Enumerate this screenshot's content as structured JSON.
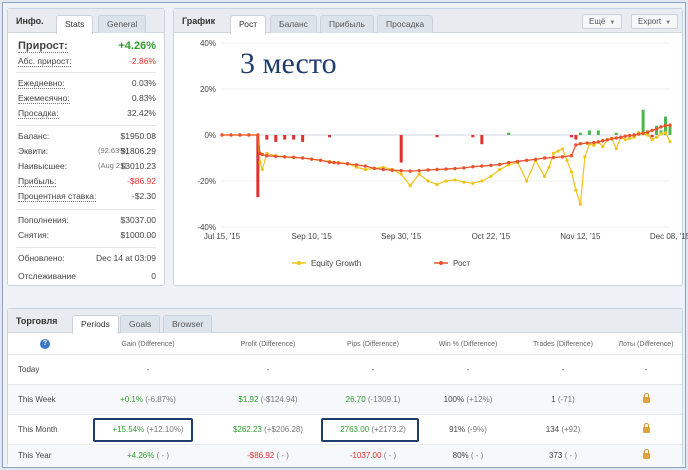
{
  "stats_panel": {
    "title": "Инфо.",
    "tabs": [
      "Stats",
      "General"
    ],
    "growth_label": "Прирост:",
    "growth_value": "+4.26%",
    "abs_growth_label": "Абс. прирост:",
    "abs_growth_value": "-2.86%",
    "daily_label": "Ежедневно:",
    "daily_value": "0.03%",
    "monthly_label": "Ежемесячно:",
    "monthly_value": "0.83%",
    "drawdown_label": "Просадка:",
    "drawdown_value": "32.42%",
    "balance_label": "Баланс:",
    "balance_value": "$1950.08",
    "equity_label": "Эквити:",
    "equity_pct": "(92.63%)",
    "equity_value": "$1806.29",
    "highest_label": "Наивысшее:",
    "highest_date": "(Aug 21)",
    "highest_value": "$3010.23",
    "profit_label": "Прибыль:",
    "profit_value": "-$86.92",
    "interest_label": "Процентная ставка:",
    "interest_value": "-$2.30",
    "deposits_label": "Пополнения:",
    "deposits_value": "$3037.00",
    "withdrawals_label": "Снятия:",
    "withdrawals_value": "$1000.00",
    "updated_label": "Обновлено:",
    "updated_value": "Dec 14 at 03:09",
    "tracking_label": "Отслеживание",
    "tracking_value": "0"
  },
  "chart_panel": {
    "title": "График",
    "tabs": [
      "Рост",
      "Баланс",
      "Прибыль",
      "Просадка"
    ],
    "more_label": "Ещё",
    "export_label": "Export",
    "overlay_text": "3 место",
    "legend": [
      "Equity Growth",
      "Рост"
    ]
  },
  "chart_data": {
    "type": "line",
    "x_ticks": [
      "Jul 15, '15",
      "Sep 10, '15",
      "Sep 30, '15",
      "Oct 22, '15",
      "Nov 12, '15",
      "Dec 08, '15"
    ],
    "y_ticks": [
      "40%",
      "20%",
      "0%",
      "-20%",
      "-40%"
    ],
    "ylim": [
      -40,
      40
    ],
    "growth_x": [
      0,
      4,
      8,
      12,
      16,
      17,
      18,
      20,
      24,
      28,
      32,
      36,
      40,
      44,
      48,
      50,
      52,
      56,
      60,
      64,
      68,
      72,
      76,
      80,
      84,
      88,
      92,
      96,
      100,
      104,
      108,
      112,
      116,
      120,
      124,
      128,
      132,
      136,
      140,
      144,
      148,
      152,
      156,
      158,
      160,
      163,
      166,
      168,
      170,
      172,
      174,
      176,
      178,
      180,
      182,
      184,
      186,
      188,
      190,
      192,
      194,
      196,
      198,
      200
    ],
    "growth_y": [
      0,
      0,
      0,
      0,
      0,
      -8,
      -8.5,
      -9,
      -9.3,
      -9.5,
      -9.7,
      -10,
      -10.5,
      -11,
      -11.8,
      -12,
      -12.2,
      -12.5,
      -13,
      -13.5,
      -14.5,
      -15,
      -15.3,
      -15.5,
      -15.7,
      -15.5,
      -15.2,
      -15,
      -14.8,
      -14.6,
      -14.3,
      -13.8,
      -13.5,
      -13.2,
      -12.8,
      -12,
      -11.5,
      -11,
      -10.6,
      -10,
      -9.8,
      -9.5,
      -9,
      -4.3,
      -3.8,
      -3.5,
      -3.3,
      -3,
      -2.5,
      -2.1,
      -1.6,
      -1.3,
      -1,
      -0.5,
      -0.2,
      0,
      0.4,
      0.8,
      1.2,
      2,
      2.6,
      3.5,
      4.1,
      4.26
    ],
    "equity_x": [
      0,
      4,
      8,
      12,
      16,
      17,
      18,
      20,
      24,
      28,
      32,
      36,
      40,
      44,
      48,
      52,
      56,
      60,
      64,
      68,
      72,
      76,
      80,
      84,
      88,
      92,
      96,
      100,
      104,
      108,
      112,
      116,
      120,
      124,
      128,
      132,
      136,
      140,
      144,
      146,
      148,
      150,
      152,
      154,
      156,
      158,
      160,
      162,
      164,
      166,
      168,
      170,
      172,
      174,
      176,
      178,
      180,
      182,
      184,
      186,
      188,
      190,
      192,
      194,
      196,
      198,
      200
    ],
    "equity_y": [
      0,
      0,
      0,
      0,
      0,
      -12,
      -15,
      -8,
      -9,
      -9.5,
      -9.8,
      -10,
      -10.5,
      -11,
      -11.5,
      -12,
      -12.5,
      -14,
      -15,
      -14.5,
      -14,
      -15,
      -17,
      -22,
      -17,
      -20,
      -21.5,
      -20,
      -19.5,
      -20.5,
      -21,
      -20,
      -18,
      -15,
      -13,
      -12,
      -20,
      -11,
      -18,
      -14,
      -8,
      -7,
      -6,
      -11,
      -16,
      -24,
      -30,
      -9.5,
      -4,
      -4.5,
      -3,
      -5,
      -2,
      -1.5,
      -6,
      -1,
      -2,
      -1.5,
      -1,
      1,
      0.5,
      0,
      -2,
      -1,
      0.5,
      1,
      -2.86
    ],
    "series": [
      {
        "name": "Рост",
        "color": "#e8532b"
      },
      {
        "name": "Equity Growth",
        "color": "#f0c419"
      }
    ],
    "bars_x": [
      16,
      20,
      24,
      28,
      32,
      36,
      48,
      80,
      96,
      112,
      116,
      128,
      156,
      158,
      160,
      164,
      168,
      176,
      184,
      186,
      188,
      190,
      192,
      194,
      196,
      198,
      200
    ],
    "bars_y": [
      -27,
      -2,
      -3,
      -2,
      -2,
      -3,
      -1,
      -12,
      -1,
      -1,
      -4,
      1,
      -1,
      -2,
      1,
      2,
      2,
      1,
      -1,
      1,
      11,
      2,
      -1,
      4,
      2,
      8,
      4
    ]
  },
  "trading_panel": {
    "title": "Торговля",
    "tabs": [
      "Periods",
      "Goals",
      "Browser"
    ],
    "help_icon": "?",
    "columns": [
      "Gain (Difference)",
      "Profit (Difference)",
      "Pips (Difference)",
      "Win % (Difference)",
      "Trades (Difference)",
      "Лоты (Difference)"
    ],
    "rows": [
      {
        "label": "Today",
        "gain": "-",
        "gain_d": "",
        "profit": "-",
        "profit_d": "",
        "pips": "-",
        "pips_d": "",
        "win": "-",
        "win_d": "",
        "trades": "-",
        "trades_d": "",
        "lots": "-"
      },
      {
        "label": "This Week",
        "gain": "+0.1%",
        "gain_d": "(-6.87%)",
        "profit": "$1.92",
        "profit_d": "(-$124.94)",
        "pips": "26.70",
        "pips_d": "(-1309.1)",
        "win": "100%",
        "win_d": "(+12%)",
        "trades": "1",
        "trades_d": "(-71)",
        "lots": ""
      },
      {
        "label": "This Month",
        "gain": "+15.54%",
        "gain_d": "(+12.10%)",
        "profit": "$262.23",
        "profit_d": "(+$206.28)",
        "pips": "2763.00",
        "pips_d": "(+2173.2)",
        "win": "91%",
        "win_d": "(-9%)",
        "trades": "134",
        "trades_d": "(+92)",
        "lots": ""
      },
      {
        "label": "This Year",
        "gain": "+4.26%",
        "gain_d": "( - )",
        "profit": "-$86.92",
        "profit_d": "( - )",
        "pips": "-1037.00",
        "pips_d": "( - )",
        "win": "80%",
        "win_d": "( - )",
        "trades": "373",
        "trades_d": "( - )",
        "lots": ""
      }
    ]
  },
  "colors": {
    "growth_line": "#e8532b",
    "equity_line": "#f0c419",
    "positive": "#2e9e2e",
    "negative": "#e03030",
    "highlight_box": "#1f3c6e"
  }
}
